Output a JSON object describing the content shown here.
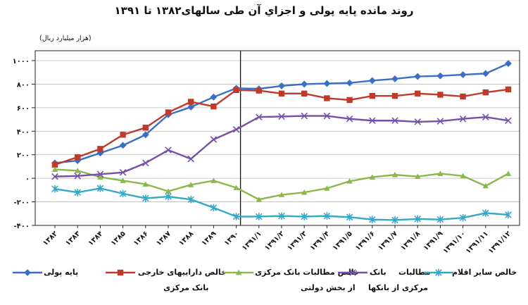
{
  "chart_data": {
    "type": "line",
    "title": "روند مانده پایه پولی و اجزاي آن طی سالهای۱۳۸۲ تا ۱۳۹۱",
    "ylabel": "(هزار میلیارد ریال)",
    "xlabel": "",
    "ylim": [
      -400,
      1000
    ],
    "yticks": [
      1000,
      800,
      600,
      400,
      200,
      0,
      -200,
      -400
    ],
    "ytick_labels": [
      "۱۰۰۰",
      "۸۰۰",
      "۶۰۰",
      "۴۰۰",
      "۲۰۰",
      "۰",
      "-۲۰۰",
      "-۴۰۰"
    ],
    "categories": [
      "۱۳۸۲",
      "۱۳۸۳",
      "۱۳۸۴",
      "۱۳۸۵",
      "۱۳۸۶",
      "۱۳۸۷",
      "۱۳۸۸",
      "۱۳۸۹",
      "۱۳۹۰",
      "۱۳۹۱/۱",
      "۱۳۹۱/۲",
      "۱۳۹۱/۳",
      "۱۳۹۱/۴",
      "۱۳۹۱/۵",
      "۱۳۹۱/۶",
      "۱۳۹۱/۷",
      "۱۳۹۱/۸",
      "۱۳۹۱/۹",
      "۱۳۹۱/۱۰",
      "۱۳۹۱/۱۱",
      "۱۳۹۱/۱۲"
    ],
    "grid": "horizontal",
    "legend_position": "bottom",
    "series": [
      {
        "name": "پایه پولی",
        "color": "#3a6fc4",
        "marker": "diamond",
        "values": [
          130,
          150,
          215,
          280,
          370,
          540,
          605,
          690,
          765,
          760,
          785,
          800,
          805,
          810,
          830,
          845,
          865,
          870,
          880,
          890,
          975
        ]
      },
      {
        "name": "خالص داراییهای خارجی بانک مرکزی",
        "color": "#c0392b",
        "marker": "square",
        "values": [
          115,
          180,
          250,
          370,
          430,
          560,
          650,
          610,
          750,
          745,
          720,
          720,
          680,
          665,
          700,
          700,
          720,
          710,
          695,
          730,
          755
        ]
      },
      {
        "name": "خالص مطالبات بانک مرکزی از بخش دولتی",
        "color": "#8ab84a",
        "marker": "triangle",
        "values": [
          75,
          65,
          10,
          -20,
          -50,
          -110,
          -55,
          -20,
          -80,
          -180,
          -140,
          -120,
          -85,
          -25,
          10,
          30,
          15,
          40,
          20,
          -65,
          40
        ]
      },
      {
        "name": "مطالبات بانک مرکزی از بانکها",
        "color": "#7451a8",
        "marker": "x",
        "values": [
          15,
          20,
          35,
          50,
          130,
          240,
          165,
          330,
          415,
          520,
          525,
          530,
          530,
          505,
          490,
          490,
          480,
          485,
          505,
          520,
          490
        ]
      },
      {
        "name": "خالص سایر اقلام",
        "color": "#35a8c7",
        "marker": "star",
        "values": [
          -90,
          -120,
          -85,
          -130,
          -170,
          -155,
          -180,
          -250,
          -325,
          -325,
          -320,
          -325,
          -320,
          -330,
          -350,
          -355,
          -345,
          -350,
          -335,
          -295,
          -310
        ]
      }
    ],
    "annotations": [
      {
        "type": "vertical-line",
        "at_category": "۱۳۹۰"
      }
    ]
  },
  "legend": {
    "row1": [
      "پایه پولی",
      "خالص داراییهای خارجی",
      "خالص مطالبات بانک مرکزی",
      "مطالبات",
      "بانک",
      "خالص سایر اقلام"
    ],
    "row2": [
      "بانک مرکزی",
      "از بخش دولتی",
      "مرکزی از بانکها"
    ]
  }
}
